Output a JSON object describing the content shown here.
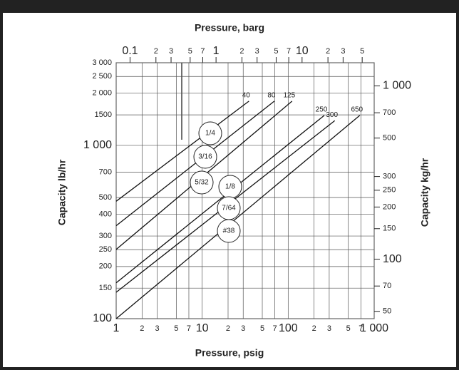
{
  "chart_data": {
    "type": "line",
    "x_axis_label": "Pressure, psig",
    "x2_axis_label": "Pressure, barg",
    "y_axis_label": "Capacity lb/hr",
    "y2_axis_label": "Capacity kg/hr",
    "xscale": "log",
    "yscale": "log",
    "xlim": [
      1,
      1000
    ],
    "xticks": [
      1,
      2,
      3,
      5,
      7,
      10,
      {
        "value": 20,
        "label": "2"
      },
      {
        "value": 30,
        "label": "3"
      },
      {
        "value": 50,
        "label": "5"
      },
      {
        "value": 70,
        "label": "7"
      },
      100,
      {
        "value": 200,
        "label": "2"
      },
      {
        "value": 300,
        "label": "3"
      },
      {
        "value": 500,
        "label": "5"
      },
      {
        "value": 700,
        "label": "7"
      },
      {
        "value": 1000,
        "label": "1 000"
      }
    ],
    "x2lim": [
      0.069,
      68.95
    ],
    "x2ticks": [
      0.1,
      {
        "value": 0.2,
        "label": "2"
      },
      {
        "value": 0.3,
        "label": "3"
      },
      {
        "value": 0.5,
        "label": "5"
      },
      {
        "value": 0.7,
        "label": "7"
      },
      1,
      2,
      3,
      5,
      7,
      10,
      {
        "value": 20,
        "label": "2"
      },
      {
        "value": 30,
        "label": "3"
      },
      {
        "value": 50,
        "label": "5"
      }
    ],
    "ylim": [
      100,
      3000
    ],
    "yticks": [
      100,
      150,
      200,
      250,
      300,
      400,
      500,
      700,
      {
        "value": 1000,
        "label": "1 000"
      },
      1500,
      {
        "value": 2000,
        "label": "2 000"
      },
      {
        "value": 2500,
        "label": "2 500"
      },
      {
        "value": 3000,
        "label": "3 000"
      }
    ],
    "y2lim": [
      45.36,
      1360.8
    ],
    "y2ticks": [
      50,
      70,
      100,
      150,
      200,
      250,
      300,
      500,
      700,
      {
        "value": 1000,
        "label": "1 000"
      }
    ],
    "grid": true,
    "series": [
      {
        "name": "40",
        "color": "#111111",
        "x": [
          1,
          35
        ],
        "values": [
          476,
          1800
        ]
      },
      {
        "name": "80",
        "color": "#111111",
        "x": [
          1,
          69
        ],
        "values": [
          344,
          1800
        ]
      },
      {
        "name": "125",
        "color": "#111111",
        "x": [
          1,
          111
        ],
        "values": [
          251,
          1800
        ]
      },
      {
        "name": "250",
        "color": "#111111",
        "x": [
          1,
          263
        ],
        "values": [
          161,
          1490
        ]
      },
      {
        "name": "300",
        "color": "#111111",
        "x": [
          1,
          348
        ],
        "values": [
          142,
          1390
        ]
      },
      {
        "name": "650",
        "color": "#111111",
        "x": [
          1,
          680
        ],
        "values": [
          100,
          1490
        ]
      }
    ],
    "annotations": [
      "1/4",
      "3/16",
      "5/32",
      "1/8",
      "7/64",
      "#38"
    ]
  }
}
